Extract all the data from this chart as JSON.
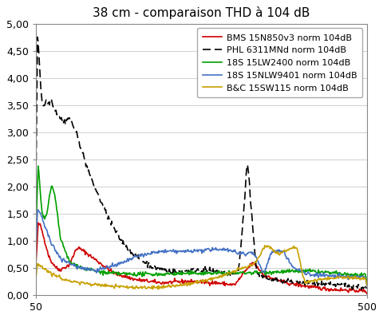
{
  "title": "38 cm - comparaison THD à 104 dB",
  "xlim": [
    50,
    500
  ],
  "ylim": [
    0,
    5.0
  ],
  "yticks": [
    0.0,
    0.5,
    1.0,
    1.5,
    2.0,
    2.5,
    3.0,
    3.5,
    4.0,
    4.5,
    5.0
  ],
  "ytick_labels": [
    "0,00",
    "0,50",
    "1,00",
    "1,50",
    "2,00",
    "2,50",
    "3,00",
    "3,50",
    "4,00",
    "4,50",
    "5,00"
  ],
  "xticks": [
    50,
    500
  ],
  "legend_labels": [
    "BMS 15N850v3 norm 104dB",
    "PHL 6311MNd norm 104dB",
    "18S 15LW2400 norm 104dB",
    "18S 15NLW9401 norm 104dB",
    "B&C 15SW115 norm 104dB"
  ],
  "line_colors": [
    "#d00000",
    "#000000",
    "#00a000",
    "#4472c4",
    "#c8a000"
  ],
  "line_styles": [
    "-",
    "--",
    "-",
    "-",
    "-"
  ],
  "line_widths": [
    1.2,
    1.2,
    1.2,
    1.2,
    1.2
  ],
  "background_color": "#ffffff",
  "grid_color": "#d0d0d0",
  "title_fontsize": 11,
  "legend_fontsize": 8
}
